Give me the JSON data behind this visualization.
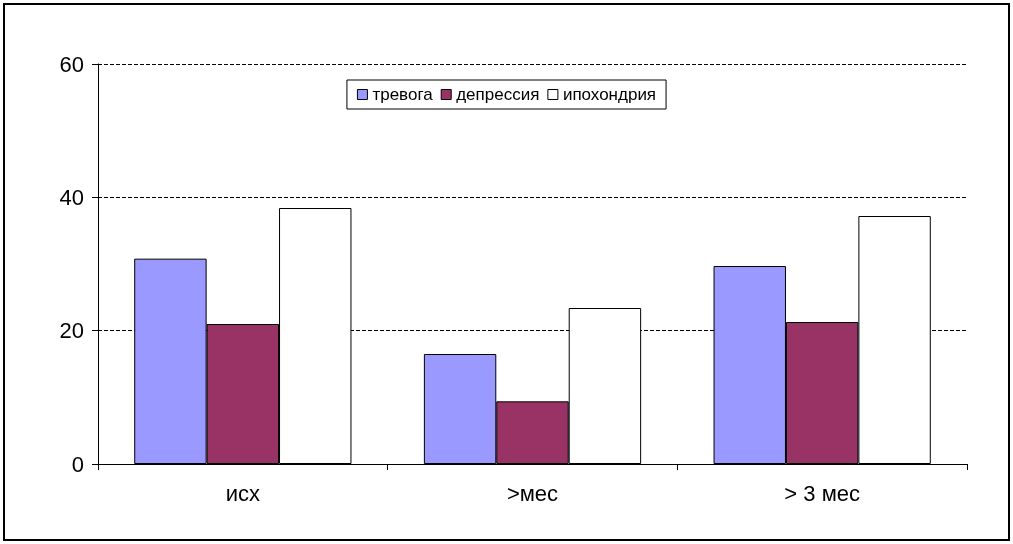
{
  "chart_data": {
    "type": "bar",
    "categories": [
      "исх",
      ">мес",
      "> 3 мес"
    ],
    "series": [
      {
        "name": "тревога",
        "color": "#9999ff",
        "values": [
          30.8,
          16.5,
          29.7
        ]
      },
      {
        "name": "депрессия",
        "color": "#993366",
        "values": [
          21.0,
          9.4,
          21.3
        ]
      },
      {
        "name": "ипохондрия",
        "color": "#ffffff",
        "values": [
          38.4,
          23.4,
          37.2
        ]
      }
    ],
    "ylim": [
      0,
      60
    ],
    "yticks": [
      0,
      20,
      40,
      60
    ],
    "grid": "y",
    "legend": "top"
  }
}
